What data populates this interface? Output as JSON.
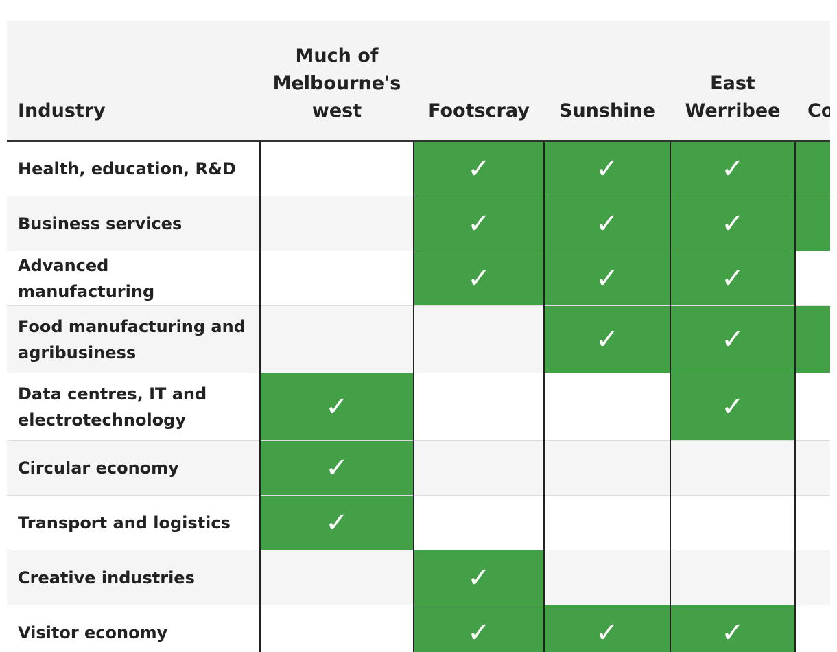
{
  "columns": {
    "industry": "Industry",
    "west_line1": "Much of",
    "west_line2": "Melbourne's",
    "west_line3": "west",
    "footscray": "Footscray",
    "sunshine": "Sunshine",
    "east_werribee_line1": "East",
    "east_werribee_line2": "Werribee",
    "clipped": "Co"
  },
  "check_symbol": "✓",
  "colors": {
    "active_cell": "#43a047",
    "header_bg": "#f4f4f5",
    "row_alt_bg": "#f5f5f6",
    "divider": "#222222"
  },
  "rows": [
    {
      "industry": "Health, education, R&D",
      "west": false,
      "footscray": true,
      "sunshine": true,
      "east_werribee": true,
      "clipped": true
    },
    {
      "industry": "Business services",
      "west": false,
      "footscray": true,
      "sunshine": true,
      "east_werribee": true,
      "clipped": true
    },
    {
      "industry": "Advanced manufacturing",
      "west": false,
      "footscray": true,
      "sunshine": true,
      "east_werribee": true,
      "clipped": false
    },
    {
      "industry": "Food manufacturing and agribusiness",
      "west": false,
      "footscray": false,
      "sunshine": true,
      "east_werribee": true,
      "clipped": true
    },
    {
      "industry": "Data centres, IT and electrotechnology",
      "west": true,
      "footscray": false,
      "sunshine": false,
      "east_werribee": true,
      "clipped": false
    },
    {
      "industry": "Circular economy",
      "west": true,
      "footscray": false,
      "sunshine": false,
      "east_werribee": false,
      "clipped": false
    },
    {
      "industry": "Transport and logistics",
      "west": true,
      "footscray": false,
      "sunshine": false,
      "east_werribee": false,
      "clipped": false
    },
    {
      "industry": "Creative industries",
      "west": false,
      "footscray": true,
      "sunshine": false,
      "east_werribee": false,
      "clipped": false
    },
    {
      "industry": "Visitor economy",
      "west": false,
      "footscray": true,
      "sunshine": true,
      "east_werribee": true,
      "clipped": false
    }
  ]
}
